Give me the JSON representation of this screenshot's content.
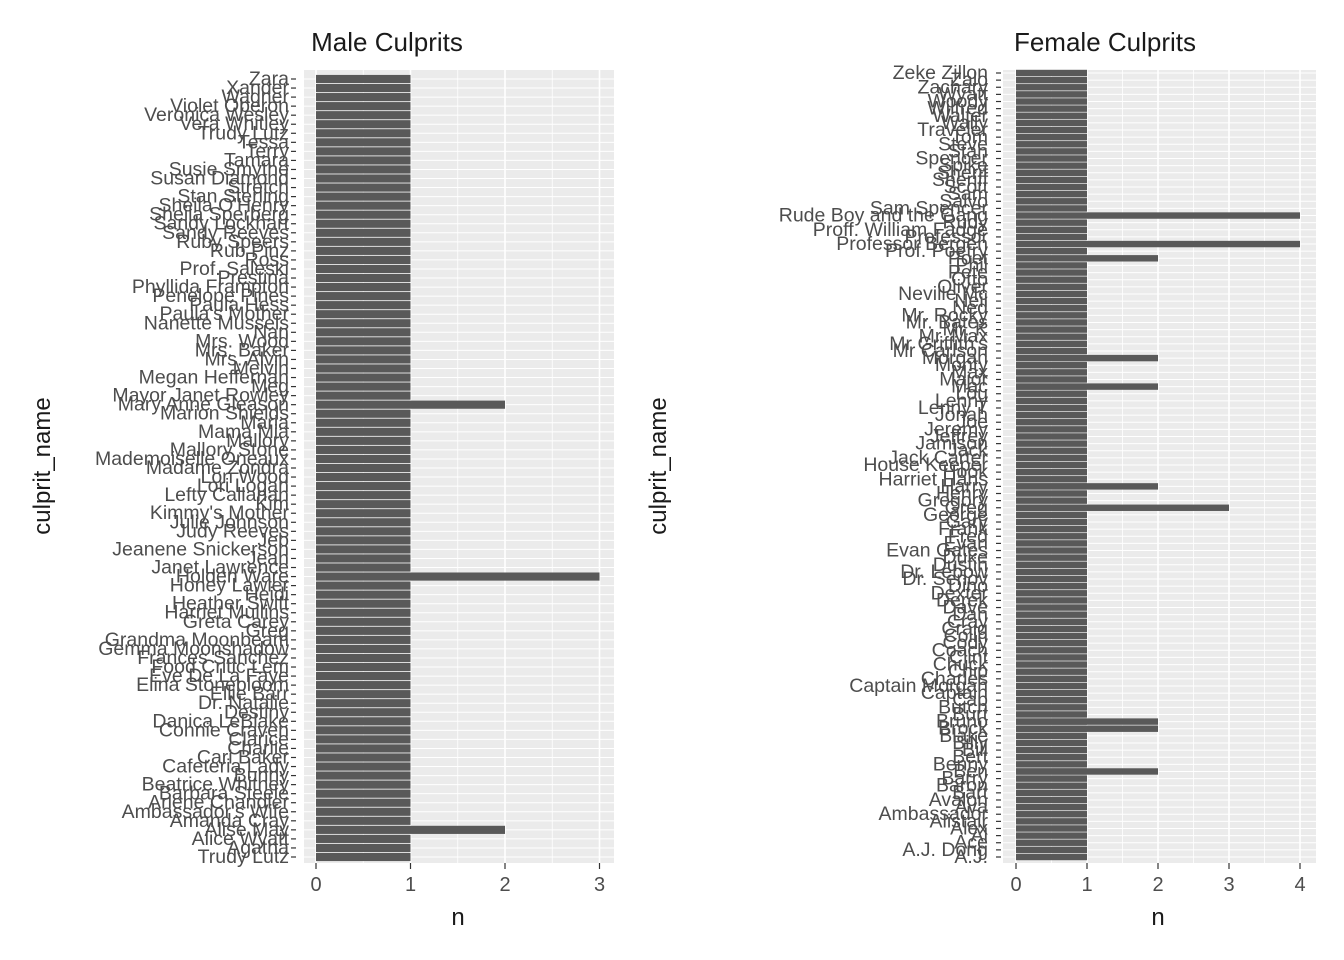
{
  "chart_data": [
    {
      "type": "bar",
      "orientation": "horizontal",
      "title": "Male Culprits",
      "xlabel": "n",
      "ylabel": "culprit_name",
      "xlim": [
        0,
        3
      ],
      "xticks": [
        0,
        1,
        2,
        3
      ],
      "grid": true,
      "bar_color": "#595959",
      "categories": [
        "Zara",
        "Xander",
        "Wagner",
        "Violet Oberon",
        "Veronica Wesley",
        "Vera Whitley",
        "Trudy Lutz",
        "Tessa",
        "Terry",
        "Tamara",
        "Susie Smythe",
        "Susan Diamond",
        "Stretch",
        "Stan Sterling",
        "Sheila O'Henry",
        "Sheila Sperberg",
        "Sandy Lockhart",
        "Sandy Reeves",
        "Ruby Speers",
        "Rub Pinz",
        "Ross",
        "Prof. Saleski",
        "Prestina",
        "Phyllida Frampton",
        "Penelope Pines",
        "Paula Hess",
        "Paula's Mother",
        "Nanette Mussels",
        "Nan",
        "Mrs. Wood",
        "Mrs. Baker",
        "Mrs. Alvin",
        "Melvin",
        "Megan Heffernan",
        "Meg",
        "Mayor Janet Rowley",
        "Mary Anne Gleason",
        "Marion Shields",
        "Maria",
        "Mama Mia",
        "Mallory",
        "Mallory Stone",
        "Mademoiselle Oneaux",
        "Madame Zondra",
        "Lori Wood",
        "Lori Logan",
        "Lefty Callahan",
        "Kim",
        "Kimmy's Mother",
        "Julie Johnson",
        "Judy Reeves",
        "Jeb",
        "Jeanene Snickerson",
        "Jean",
        "Janet Lawrence",
        "Holden Ware",
        "Honey Lawler",
        "Heidi",
        "Heather Swift",
        "Harriet Mullins",
        "Greta Carey",
        "Greg",
        "Grandma Moonbeam",
        "Gemma Moonshadow",
        "Frances Sanchez",
        "Food Critic Lem",
        "Eve De La Faye",
        "Elina Stonebloom",
        "Ellie Barr",
        "Dr. Natalie",
        "Destiny",
        "Danica LeBlake",
        "Connie Craven",
        "Clarice",
        "Charlie",
        "Cari Baker",
        "Cafeteria Lady",
        "Bunny",
        "Beatrice Whitney",
        "Barbara Steele",
        "Arlene Chandler",
        "Ambassador's Wife",
        "Amanda Cray",
        "Alise May",
        "Alice Wyatt",
        "Agatha",
        "Trudy Lutz"
      ],
      "values": [
        1,
        1,
        1,
        1,
        1,
        1,
        1,
        1,
        1,
        1,
        1,
        1,
        1,
        1,
        1,
        1,
        1,
        1,
        1,
        1,
        1,
        1,
        1,
        1,
        1,
        1,
        1,
        1,
        1,
        1,
        1,
        1,
        1,
        1,
        1,
        1,
        2,
        1,
        1,
        1,
        1,
        1,
        1,
        1,
        1,
        1,
        1,
        1,
        1,
        1,
        1,
        1,
        1,
        1,
        1,
        3,
        1,
        1,
        1,
        1,
        1,
        1,
        1,
        1,
        1,
        1,
        1,
        1,
        1,
        1,
        1,
        1,
        1,
        1,
        1,
        1,
        1,
        1,
        1,
        1,
        1,
        1,
        1,
        2,
        1,
        1,
        1
      ]
    },
    {
      "type": "bar",
      "orientation": "horizontal",
      "title": "Female Culprits",
      "xlabel": "n",
      "ylabel": "culprit_name",
      "xlim": [
        0,
        4
      ],
      "xticks": [
        0,
        1,
        2,
        3,
        4
      ],
      "grid": true,
      "bar_color": "#595959",
      "categories": [
        "Zeke Zillon",
        "Zalo",
        "Zachary",
        "Wyatt",
        "Woody",
        "Wilfred",
        "Walter",
        "Wally",
        "Traveler",
        "Tom",
        "Steve",
        "Stan",
        "Spencer",
        "Spike",
        "Sherif",
        "Sheriff",
        "Scott",
        "Sam",
        "Salvo",
        "Sam Spencer",
        "Rude Boy and the Gang",
        "Rudy",
        "Proff. William Fadge",
        "Professor",
        "Professor Bergen",
        "Prof. Poetry",
        "Poet",
        "Phil",
        "Pete",
        "Otto",
        "Oliver",
        "Neville Mc",
        "Neil",
        "Ned",
        "Mr. Rocky",
        "Mr. Bates",
        "Mr. K",
        "Mr. Max",
        "Mr Griffith's",
        "Mr Carlson",
        "Morgan",
        "Monty",
        "Max",
        "Major",
        "Mac",
        "Lou",
        "Lenny",
        "Lenny T",
        "Jonah",
        "Joe",
        "Jeremy",
        "Jeffrey",
        "Jamison",
        "Jack",
        "Jack Carter",
        "House Keeper",
        "Hook",
        "Harriet Hans",
        "Harry",
        "Henry",
        "Gregory",
        "Greg",
        "George",
        "Gary",
        "Frank",
        "Fred",
        "Evan",
        "Evan Gates",
        "Duke",
        "Dustin",
        "Dr. Lebow",
        "Dr. Senov",
        "Dino",
        "Dexter",
        "Derek",
        "Dave",
        "Dan",
        "Cray",
        "Craig",
        "Colin",
        "Cody",
        "Coach",
        "Clint",
        "Chuck",
        "Chip",
        "Charles",
        "Captain Morgan",
        "Captain",
        "Cap",
        "Butch",
        "Burt",
        "Bruno",
        "Brock",
        "Blake",
        "Billy",
        "Bill",
        "Bert",
        "Benny",
        "Ben",
        "Barry",
        "Baron",
        "Bart",
        "Avalon",
        "Ava",
        "Ambassador",
        "Alistair",
        "Alex",
        "Al",
        "Ace",
        "A.J. Dong",
        "A.J."
      ],
      "values": [
        1,
        1,
        1,
        1,
        1,
        1,
        1,
        1,
        1,
        1,
        1,
        1,
        1,
        1,
        1,
        1,
        1,
        1,
        1,
        1,
        4,
        1,
        1,
        1,
        4,
        1,
        2,
        1,
        1,
        1,
        1,
        1,
        1,
        1,
        1,
        1,
        1,
        1,
        1,
        1,
        1,
        1,
        1,
        1,
        1,
        1,
        1,
        1,
        1,
        1,
        1,
        1,
        1,
        1,
        1,
        1,
        1,
        1,
        1,
        1,
        1,
        1,
        1,
        1,
        1,
        1,
        1,
        1,
        1,
        1,
        1,
        1,
        1,
        1,
        1,
        1,
        1,
        1,
        1,
        1,
        1,
        1,
        1,
        1,
        1,
        1,
        1,
        1,
        1,
        1,
        1,
        1,
        1,
        1,
        1,
        1,
        1,
        1,
        1,
        1,
        1,
        1,
        1,
        1,
        1,
        1,
        1,
        1,
        1,
        1,
        1
      ],
      "extra_bars": [
        {
          "category_index": 40,
          "value": 2
        },
        {
          "category_index": 44,
          "value": 2
        },
        {
          "category_index": 58,
          "value": 2
        },
        {
          "category_index": 61,
          "value": 3
        },
        {
          "category_index": 91,
          "value": 2
        },
        {
          "category_index": 92,
          "value": 2
        },
        {
          "category_index": 98,
          "value": 2
        }
      ]
    }
  ]
}
